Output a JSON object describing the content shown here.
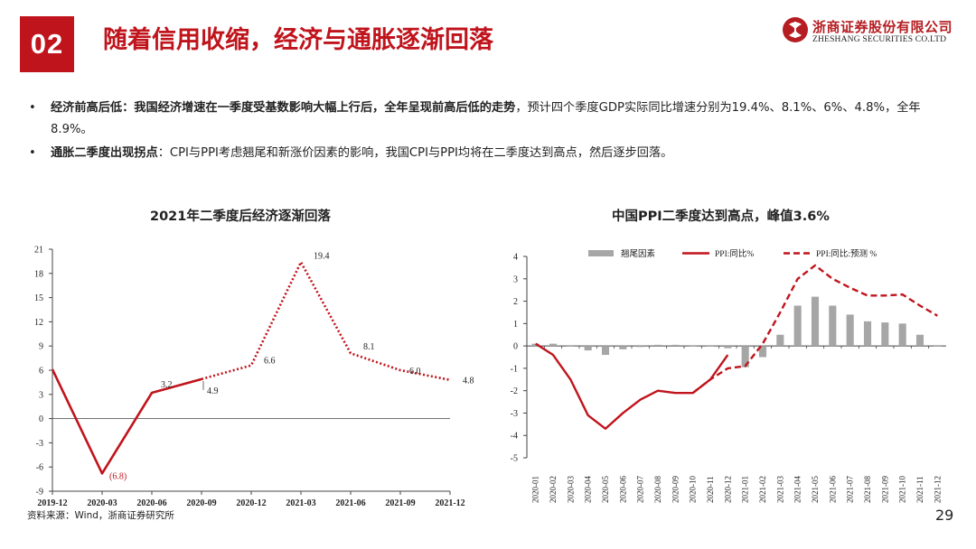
{
  "header": {
    "section_number": "02",
    "title": "随着信用收缩，经济与通胀逐渐回落",
    "logo": {
      "cn": "浙商证券股份有限公司",
      "en": "ZHESHANG SECURITIES CO.LTD"
    }
  },
  "bullets": [
    {
      "bold": "经济前高后低：我国经济增速在一季度受基数影响大幅上行后，全年呈现前高后低的走势",
      "text": "，预计四个季度GDP实际同比增速分别为19.4%、8.1%、6%、4.8%，全年8.9%。"
    },
    {
      "bold": "通胀二季度出现拐点",
      "text": "：CPI与PPI考虑翘尾和新涨价因素的影响，我国CPI与PPI均将在二季度达到高点，然后逐步回落。"
    }
  ],
  "chart_data": [
    {
      "type": "line",
      "title": "2021年二季度后经济逐渐回落",
      "x": [
        "2019-12",
        "2020-03",
        "2020-06",
        "2020-09",
        "2020-12",
        "2021-03",
        "2021-06",
        "2021-09",
        "2021-12"
      ],
      "series": [
        {
          "values": [
            6.1,
            -6.8,
            3.2,
            4.9,
            null,
            null,
            null,
            null,
            null
          ],
          "color": "#c0141c",
          "style": "solid"
        },
        {
          "values": [
            null,
            null,
            null,
            4.9,
            6.6,
            19.4,
            8.1,
            6.0,
            4.8
          ],
          "color": "#c0141c",
          "style": "dotted"
        }
      ],
      "data_labels": [
        {
          "index": 1,
          "text": "(6.8)",
          "color": "#c0141c"
        },
        {
          "index": 2,
          "text": "3.2"
        },
        {
          "index": 3,
          "text": "4.9"
        },
        {
          "index": 4,
          "text": "6.6"
        },
        {
          "index": 5,
          "text": "19.4"
        },
        {
          "index": 6,
          "text": "8.1"
        },
        {
          "index": 7,
          "text": "6.0"
        },
        {
          "index": 8,
          "text": "4.8"
        }
      ],
      "ylim": [
        -9,
        21
      ],
      "yticks": [
        -9,
        -6,
        -3,
        0,
        3,
        6,
        9,
        12,
        15,
        18,
        21
      ],
      "xlabel": "",
      "ylabel": "",
      "grid": false
    },
    {
      "type": "bar+line",
      "title": "中国PPI二季度达到高点，峰值3.6%",
      "x": [
        "2020-01",
        "2020-02",
        "2020-03",
        "2020-04",
        "2020-05",
        "2020-06",
        "2020-07",
        "2020-08",
        "2020-09",
        "2020-10",
        "2020-11",
        "2020-12",
        "2021-01",
        "2021-02",
        "2021-03",
        "2021-04",
        "2021-05",
        "2021-06",
        "2021-07",
        "2021-08",
        "2021-09",
        "2021-10",
        "2021-11",
        "2021-12"
      ],
      "series": [
        {
          "name": "翘尾因素",
          "type": "bar",
          "color": "#a6a6a6",
          "values": [
            0.1,
            0.1,
            0,
            -0.2,
            -0.4,
            -0.15,
            -0.05,
            0.05,
            0.05,
            0,
            0,
            -0.1,
            -0.95,
            -0.5,
            0.5,
            1.8,
            2.2,
            1.8,
            1.4,
            1.1,
            1.05,
            1.0,
            0.5,
            0
          ]
        },
        {
          "name": "PPI:同比%",
          "type": "line",
          "color": "#c0141c",
          "style": "solid",
          "values": [
            0.1,
            -0.4,
            -1.5,
            -3.1,
            -3.7,
            -3.0,
            -2.4,
            -2.0,
            -2.1,
            -2.1,
            -1.5,
            -0.4,
            null,
            null,
            null,
            null,
            null,
            null,
            null,
            null,
            null,
            null,
            null,
            null
          ]
        },
        {
          "name": "PPI:同比:预测 %",
          "type": "line",
          "color": "#c0141c",
          "style": "dashed",
          "values": [
            null,
            null,
            null,
            null,
            null,
            null,
            null,
            null,
            null,
            -2.1,
            -1.5,
            -1.0,
            -0.9,
            0.1,
            1.5,
            3.0,
            3.6,
            3.0,
            2.6,
            2.25,
            2.25,
            2.3,
            1.8,
            1.35
          ]
        }
      ],
      "ylim": [
        -5,
        4
      ],
      "yticks": [
        -5,
        -4,
        -3,
        -2,
        -1,
        0,
        1,
        2,
        3,
        4
      ],
      "legend": "top",
      "grid": false
    }
  ],
  "footer": {
    "source": "资料来源：Wind，浙商证券研究所",
    "page": "29"
  }
}
